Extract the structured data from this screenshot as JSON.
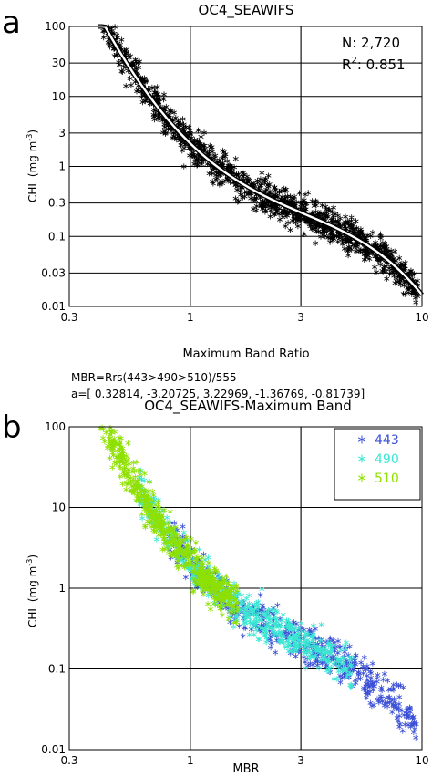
{
  "chart_data": [
    {
      "type": "scatter",
      "panel_label": "a",
      "title": "OC4_SEAWIFS",
      "xlabel": "Maximum Band Ratio",
      "ylabel": "CHL (mg m",
      "ylabel_sup": "-3",
      "ylabel_end": ")",
      "x_scale": "log",
      "y_scale": "log",
      "xlim": [
        0.3,
        10
      ],
      "ylim": [
        0.01,
        100
      ],
      "x_ticks": [
        0.3,
        1,
        3,
        10
      ],
      "x_tick_labels": [
        "0.3",
        "1",
        "3",
        "10"
      ],
      "y_ticks": [
        0.01,
        0.03,
        0.1,
        0.3,
        1,
        3,
        10,
        30,
        100
      ],
      "y_tick_labels": [
        "0.01",
        "0.03",
        "0.1",
        "0.3",
        "1",
        "3",
        "10",
        "30",
        "100"
      ],
      "grid": true,
      "stats": {
        "n_label": "N: 2,720",
        "r2_base": "R",
        "r2_sup": "2",
        "r2_value": ":  0.851"
      },
      "formula_lines": [
        "MBR=Rrs(443>490>510)/555",
        "a=[  0.32814, -3.20725,  3.22969, -1.36769, -0.81739]"
      ],
      "coefficients": [
        0.32814,
        -3.20725,
        3.22969,
        -1.36769,
        -0.81739
      ],
      "points_color": "#000000",
      "curve_color": "#ffffff"
    },
    {
      "type": "scatter",
      "panel_label": "b",
      "title": "OC4_SEAWIFS-Maximum Band",
      "xlabel": "MBR",
      "ylabel": "CHL (mg m",
      "ylabel_sup": "-3",
      "ylabel_end": ")",
      "x_scale": "log",
      "y_scale": "log",
      "xlim": [
        0.3,
        10
      ],
      "ylim": [
        0.01,
        100
      ],
      "x_ticks": [
        0.3,
        1,
        3,
        10
      ],
      "x_tick_labels": [
        "0.3",
        "1",
        "3",
        "10"
      ],
      "y_ticks": [
        0.01,
        0.1,
        1,
        10,
        100
      ],
      "y_tick_labels": [
        "0.01",
        "0.1",
        "1",
        "10",
        "100"
      ],
      "grid": true,
      "legend_position": "top-right",
      "series": [
        {
          "name": "443",
          "color": "#3a4fd6",
          "mbr_range": [
            0.8,
            9.5
          ]
        },
        {
          "name": "490",
          "color": "#39e6d2",
          "mbr_range": [
            0.6,
            5.0
          ]
        },
        {
          "name": "510",
          "color": "#8ee000",
          "mbr_range": [
            0.4,
            1.6
          ]
        }
      ]
    }
  ]
}
